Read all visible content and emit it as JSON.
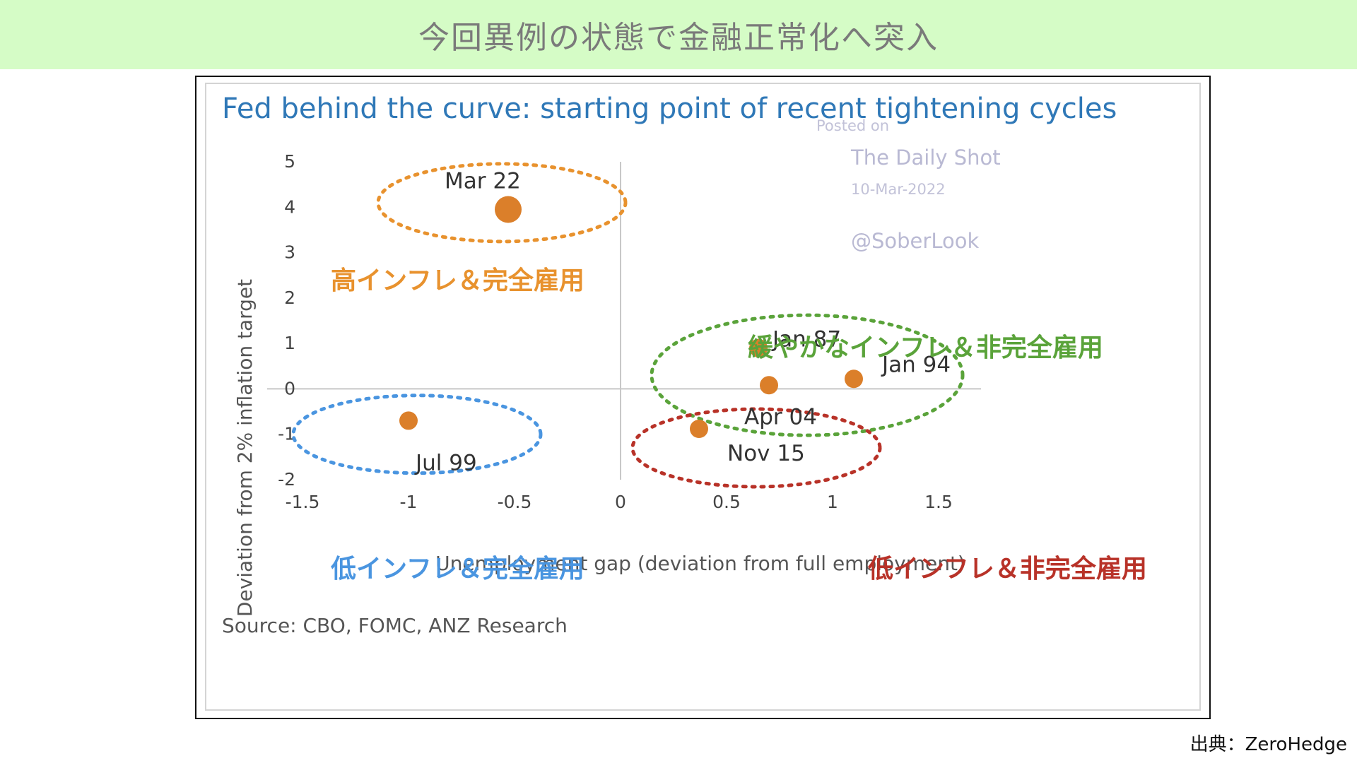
{
  "banner": {
    "title": "今回異例の状態で金融正常化へ突入"
  },
  "credit": "出典：ZeroHedge",
  "watermark": {
    "posted": "Posted on",
    "site": "The Daily Shot",
    "date": "10-Mar-2022",
    "handle": "@SoberLook"
  },
  "annotations": [
    {
      "text": "高インフレ＆完全雇用",
      "color": "#e8922e"
    },
    {
      "text": "緩やかなインフレ＆非完全雇用",
      "color": "#5aa33a"
    },
    {
      "text": "低インフレ＆完全雇用",
      "color": "#4a95e0"
    },
    {
      "text": "低インフレ＆非完全雇用",
      "color": "#b83228"
    }
  ],
  "chart_data": {
    "type": "scatter",
    "title": "Fed behind the curve: starting point of recent tightening cycles",
    "xlabel": "Unemployment  gap (deviation from full employment)",
    "ylabel": "Deviation from  2% inflation  target",
    "source": "Source: CBO, FOMC, ANZ Research",
    "xlim": [
      -1.5,
      1.5
    ],
    "ylim": [
      -2,
      5
    ],
    "xticks": [
      "-1.5",
      "-1",
      "-0.5",
      "0",
      "0.5",
      "1",
      "1.5"
    ],
    "yticks": [
      "-2",
      "-1",
      "0",
      "1",
      "2",
      "3",
      "4",
      "5"
    ],
    "point_color": "#db7f2a",
    "points": [
      {
        "label": "Mar 22",
        "x": -0.53,
        "y": 3.95
      },
      {
        "label": "Jan 87",
        "x": 0.65,
        "y": 0.9
      },
      {
        "label": "Jan 94",
        "x": 1.1,
        "y": 0.22
      },
      {
        "label": "Apr 04",
        "x": 0.7,
        "y": 0.08
      },
      {
        "label": "Jul 99",
        "x": -1.0,
        "y": -0.7
      },
      {
        "label": "Nov 15",
        "x": 0.37,
        "y": -0.88
      }
    ]
  }
}
